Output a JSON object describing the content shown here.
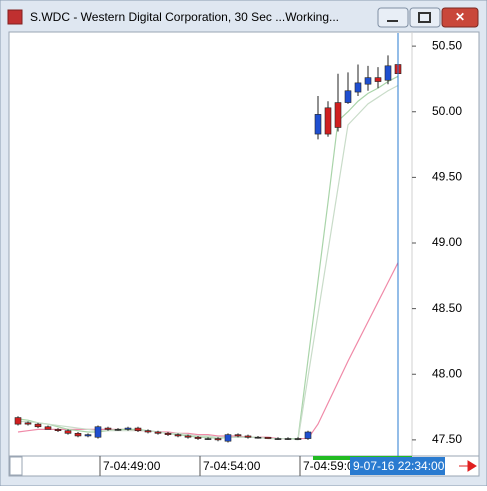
{
  "chart_data": {
    "type": "candlestick",
    "title": "S.WDC - Western Digital Corporation, 30 Sec ...Working...",
    "cursor_label": "9-07-16 22:34:00",
    "categories": [
      null,
      null,
      null,
      null,
      null,
      null,
      null,
      null,
      "7-04:49:00",
      null,
      null,
      null,
      null,
      null,
      null,
      null,
      null,
      null,
      "7-04:54:00",
      null,
      null,
      null,
      null,
      null,
      null,
      null,
      null,
      null,
      "7-04:59:00",
      null,
      null,
      null,
      null,
      null,
      null,
      null,
      null,
      null,
      null
    ],
    "open": [
      47.67,
      47.63,
      47.62,
      47.6,
      47.58,
      47.57,
      47.55,
      47.53,
      47.52,
      47.59,
      47.58,
      47.58,
      47.59,
      47.57,
      47.56,
      47.55,
      47.54,
      47.53,
      47.52,
      47.51,
      47.51,
      47.49,
      47.54,
      47.53,
      47.52,
      47.52,
      47.51,
      47.51,
      47.51,
      47.51,
      49.83,
      50.03,
      50.07,
      50.07,
      50.15,
      50.21,
      50.26,
      50.24,
      50.36
    ],
    "high": [
      47.68,
      47.64,
      47.63,
      47.61,
      47.59,
      47.58,
      47.56,
      47.55,
      47.61,
      47.6,
      47.59,
      47.6,
      47.6,
      47.58,
      47.57,
      47.56,
      47.55,
      47.54,
      47.53,
      47.52,
      47.52,
      47.55,
      47.55,
      47.54,
      47.53,
      47.52,
      47.52,
      47.52,
      47.52,
      47.57,
      50.12,
      50.08,
      50.29,
      50.3,
      50.36,
      50.35,
      50.34,
      50.43,
      50.45
    ],
    "low": [
      47.61,
      47.61,
      47.59,
      47.58,
      47.56,
      47.54,
      47.52,
      47.52,
      47.51,
      47.57,
      47.57,
      47.57,
      47.56,
      47.55,
      47.54,
      47.53,
      47.52,
      47.51,
      47.5,
      47.5,
      47.49,
      47.48,
      47.52,
      47.51,
      47.51,
      47.51,
      47.5,
      47.5,
      47.5,
      47.5,
      49.79,
      49.81,
      49.85,
      50.06,
      50.12,
      50.16,
      50.18,
      50.21,
      50.25
    ],
    "close": [
      47.62,
      47.62,
      47.6,
      47.58,
      47.57,
      47.55,
      47.53,
      47.54,
      47.6,
      47.58,
      47.58,
      47.59,
      47.57,
      47.56,
      47.55,
      47.54,
      47.53,
      47.52,
      47.51,
      47.51,
      47.5,
      47.54,
      47.53,
      47.52,
      47.52,
      47.51,
      47.51,
      47.51,
      47.51,
      47.56,
      49.98,
      49.83,
      49.88,
      50.16,
      50.22,
      50.26,
      50.23,
      50.35,
      50.29
    ],
    "up_color": "#1f4fd0",
    "down_color": "#d01f1f",
    "flat_color": "#333333",
    "overlays": [
      {
        "color": "#f08aa8",
        "values": [
          47.56,
          47.57,
          47.58,
          47.58,
          47.58,
          47.58,
          47.58,
          47.58,
          47.58,
          47.58,
          47.58,
          47.58,
          47.57,
          47.57,
          47.56,
          47.56,
          47.55,
          47.55,
          47.54,
          47.54,
          47.53,
          47.53,
          47.53,
          47.52,
          47.52,
          47.52,
          47.51,
          47.51,
          47.51,
          47.51,
          47.62,
          47.78,
          47.94,
          48.1,
          48.25,
          48.4,
          48.55,
          48.7,
          48.85
        ]
      },
      {
        "color": "#a9d4a9",
        "values": [
          47.66,
          47.65,
          47.63,
          47.62,
          47.6,
          47.58,
          47.57,
          47.56,
          47.56,
          47.57,
          47.58,
          47.58,
          47.58,
          47.57,
          47.56,
          47.55,
          47.54,
          47.53,
          47.52,
          47.52,
          47.51,
          47.52,
          47.52,
          47.52,
          47.52,
          47.51,
          47.51,
          47.51,
          47.51,
          48.11,
          48.71,
          49.31,
          49.93,
          50.0,
          50.08,
          50.14,
          50.18,
          50.23,
          50.27
        ]
      },
      {
        "color": "#c9dcc9",
        "values": [
          47.64,
          47.64,
          47.63,
          47.62,
          47.61,
          47.6,
          47.59,
          47.58,
          47.57,
          47.57,
          47.57,
          47.57,
          47.57,
          47.57,
          47.56,
          47.55,
          47.55,
          47.54,
          47.53,
          47.53,
          47.52,
          47.52,
          47.52,
          47.52,
          47.52,
          47.51,
          47.51,
          47.51,
          47.5,
          47.98,
          48.46,
          48.94,
          49.42,
          49.9,
          49.98,
          50.06,
          50.11,
          50.16,
          50.2
        ]
      }
    ],
    "ylim": [
      47.4,
      50.6
    ],
    "yticks": [
      {
        "value": 50.5,
        "label": "50.50"
      },
      {
        "value": 50,
        "label": "50.00"
      },
      {
        "value": 49.5,
        "label": "49.50"
      },
      {
        "value": 49,
        "label": "49.00"
      },
      {
        "value": 48.5,
        "label": "48.50"
      },
      {
        "value": 48,
        "label": "48.00"
      },
      {
        "value": 47.5,
        "label": "47.50"
      }
    ]
  }
}
